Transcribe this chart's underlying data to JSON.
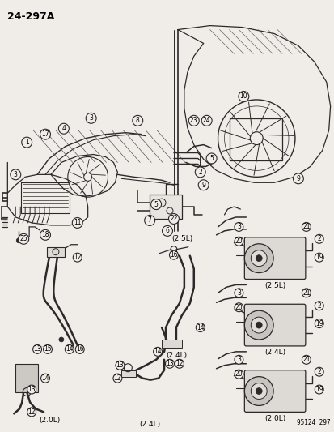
{
  "title": "24-297A",
  "background_color": "#f0ede8",
  "line_color": "#2a2a2a",
  "text_color": "#000000",
  "fig_width": 4.14,
  "fig_height": 5.33,
  "dpi": 100,
  "copyright": "95124 297",
  "engine_labels_2_5L_left": "(2.5L)",
  "engine_labels_2_5L_right": "(2.5L)",
  "engine_labels_2_4L_center": "(2.4L)",
  "engine_labels_2_4L_right": "(2.4L)",
  "engine_labels_2_0L_left": "(2.0L)",
  "engine_labels_2_0L_center": "(2.4L)",
  "engine_labels_2_0L_right": "(2.0L)"
}
